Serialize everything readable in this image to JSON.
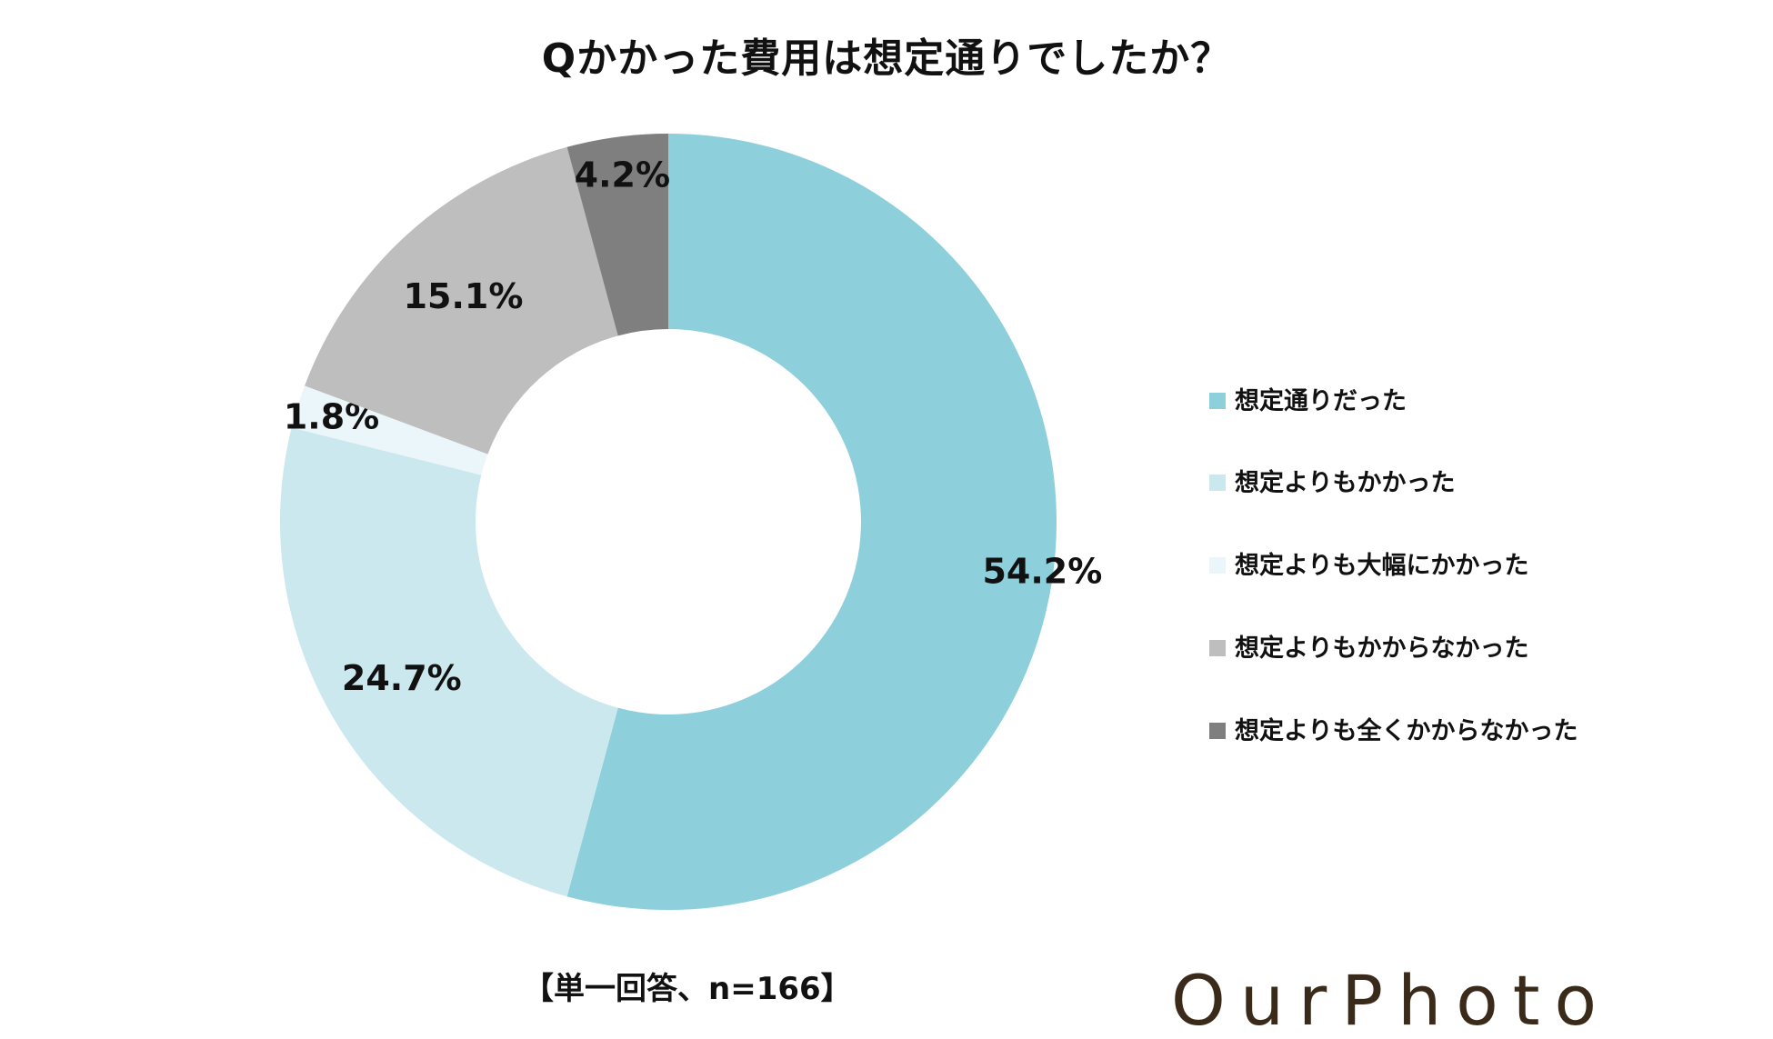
{
  "chart_data": {
    "type": "pie",
    "title": "Qかかった費用は想定通りでしたか？",
    "categories": [
      "想定通りだった",
      "想定よりもかかった",
      "想定よりも大幅にかかった",
      "想定よりもかからなかった",
      "想定よりも全くかからなかった"
    ],
    "values": [
      54.2,
      24.7,
      1.8,
      15.1,
      4.2
    ],
    "value_labels": [
      "54.2%",
      "24.7%",
      "1.8%",
      "15.1%",
      "4.2%"
    ],
    "colors": [
      "#8ecfdc",
      "#cae8ee",
      "#eaf6f9",
      "#bebebe",
      "#7f7f7f"
    ],
    "donut": true,
    "legend_position": "right"
  },
  "note": "【単一回答、n=166】",
  "logo": {
    "text": "OurPhoto",
    "color": "#3a2a1a"
  }
}
